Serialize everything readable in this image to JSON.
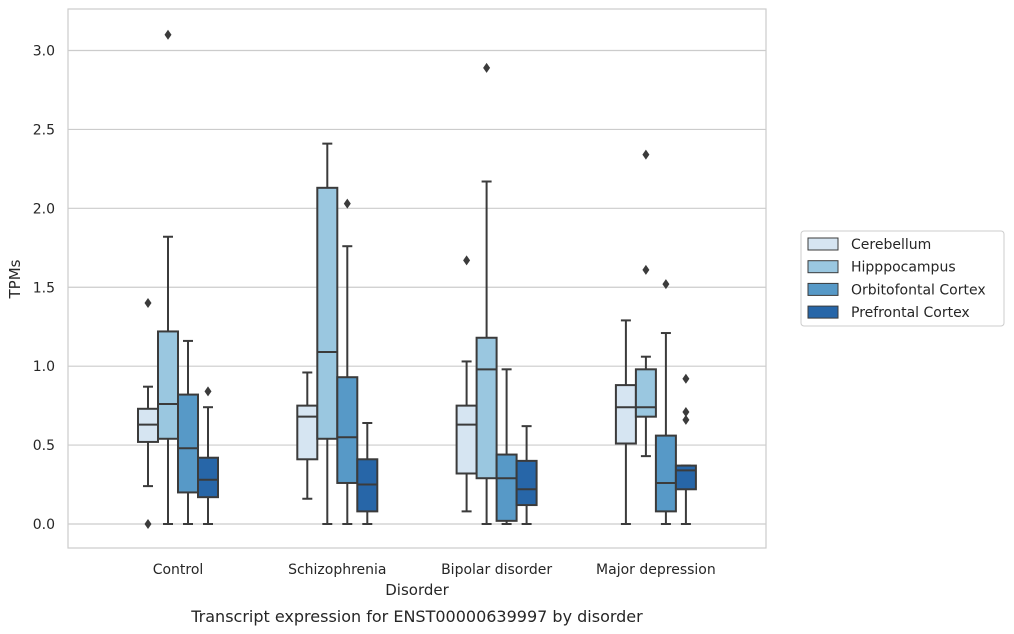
{
  "chart_data": {
    "type": "boxplot",
    "caption": "Transcript expression for ENST00000639997 by disorder",
    "xlabel": "Disorder",
    "ylabel": "TPMs",
    "ylim": [
      -0.15,
      3.25
    ],
    "yticks": [
      "0.0",
      "0.5",
      "1.0",
      "1.5",
      "2.0",
      "2.5",
      "3.0"
    ],
    "categories": [
      "Control",
      "Schizophrenia",
      "Bipolar disorder",
      "Major depression"
    ],
    "grid": "horizontal",
    "legend_position": "right",
    "series": [
      {
        "name": "Cerebellum",
        "color": "#d6e5f2",
        "boxes": [
          {
            "whislo": 0.24,
            "q1": 0.52,
            "med": 0.63,
            "q3": 0.73,
            "whishi": 0.87,
            "fliers": [
              0.0,
              1.4
            ]
          },
          {
            "whislo": 0.16,
            "q1": 0.41,
            "med": 0.68,
            "q3": 0.75,
            "whishi": 0.96,
            "fliers": []
          },
          {
            "whislo": 0.08,
            "q1": 0.32,
            "med": 0.63,
            "q3": 0.75,
            "whishi": 1.03,
            "fliers": [
              1.67
            ]
          },
          {
            "whislo": 0.0,
            "q1": 0.51,
            "med": 0.74,
            "q3": 0.88,
            "whishi": 1.29,
            "fliers": []
          }
        ]
      },
      {
        "name": "Hipppocampus",
        "color": "#9ac7e0",
        "boxes": [
          {
            "whislo": 0.0,
            "q1": 0.54,
            "med": 0.76,
            "q3": 1.22,
            "whishi": 1.82,
            "fliers": [
              3.1
            ]
          },
          {
            "whislo": 0.0,
            "q1": 0.54,
            "med": 1.09,
            "q3": 2.13,
            "whishi": 2.41,
            "fliers": []
          },
          {
            "whislo": 0.0,
            "q1": 0.29,
            "med": 0.98,
            "q3": 1.18,
            "whishi": 2.17,
            "fliers": [
              2.89
            ]
          },
          {
            "whislo": 0.43,
            "q1": 0.68,
            "med": 0.74,
            "q3": 0.98,
            "whishi": 1.06,
            "fliers": [
              1.61,
              2.34
            ]
          }
        ]
      },
      {
        "name": "Orbitofontal Cortex",
        "color": "#5799c7",
        "boxes": [
          {
            "whislo": 0.0,
            "q1": 0.2,
            "med": 0.48,
            "q3": 0.82,
            "whishi": 1.16,
            "fliers": []
          },
          {
            "whislo": 0.0,
            "q1": 0.26,
            "med": 0.55,
            "q3": 0.93,
            "whishi": 1.76,
            "fliers": [
              2.03
            ]
          },
          {
            "whislo": 0.0,
            "q1": 0.02,
            "med": 0.29,
            "q3": 0.44,
            "whishi": 0.98,
            "fliers": []
          },
          {
            "whislo": 0.0,
            "q1": 0.08,
            "med": 0.26,
            "q3": 0.56,
            "whishi": 1.21,
            "fliers": [
              1.52
            ]
          }
        ]
      },
      {
        "name": "Prefrontal Cortex",
        "color": "#2766a8",
        "boxes": [
          {
            "whislo": 0.0,
            "q1": 0.17,
            "med": 0.28,
            "q3": 0.42,
            "whishi": 0.74,
            "fliers": [
              0.84
            ]
          },
          {
            "whislo": 0.0,
            "q1": 0.08,
            "med": 0.25,
            "q3": 0.41,
            "whishi": 0.64,
            "fliers": []
          },
          {
            "whislo": 0.0,
            "q1": 0.12,
            "med": 0.22,
            "q3": 0.4,
            "whishi": 0.62,
            "fliers": []
          },
          {
            "whislo": 0.0,
            "q1": 0.22,
            "med": 0.34,
            "q3": 0.37,
            "whishi": 0.37,
            "fliers": [
              0.66,
              0.71,
              0.92
            ]
          }
        ]
      }
    ]
  }
}
